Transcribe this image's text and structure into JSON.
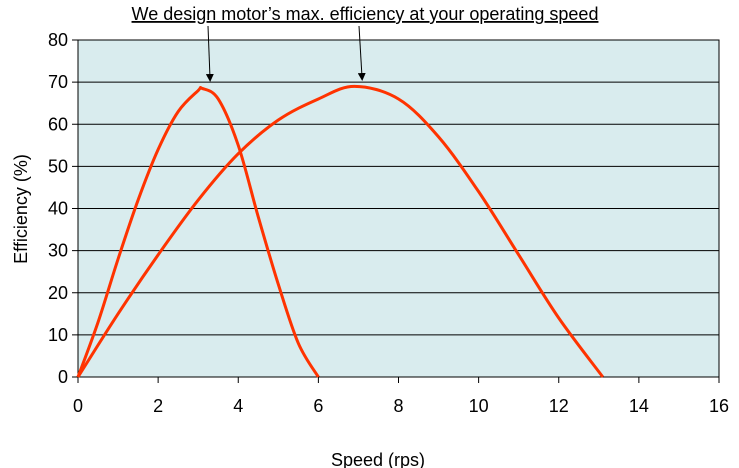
{
  "chart_data": {
    "type": "line",
    "title": "",
    "xlabel": "Speed (rps)",
    "ylabel": "Efficiency (%)",
    "xlim": [
      0,
      16
    ],
    "ylim": [
      0,
      80
    ],
    "xticks": [
      "0",
      "2",
      "4",
      "6",
      "8",
      "10",
      "12",
      "14",
      "16"
    ],
    "yticks": [
      "0",
      "10",
      "20",
      "30",
      "40",
      "50",
      "60",
      "70",
      "80"
    ],
    "grid": "horizontal",
    "plot_background": "#d9ecee",
    "line_color": "#ff3300",
    "annotation": {
      "text": "We design motor’s max. efficiency at your operating speed",
      "targets": [
        {
          "x": 3.1,
          "y": 68.5
        },
        {
          "x": 6.9,
          "y": 69
        }
      ]
    },
    "series": [
      {
        "x": [
          0,
          0.5,
          1,
          1.5,
          2,
          2.5,
          3,
          3.1,
          3.5,
          4,
          4.5,
          5,
          5.5,
          6
        ],
        "values": [
          0,
          13,
          28,
          42,
          54,
          63,
          68,
          68.5,
          66,
          55,
          38,
          22,
          8,
          0
        ]
      },
      {
        "x": [
          0,
          1,
          2,
          3,
          4,
          5,
          6,
          6.9,
          8,
          9,
          10,
          11,
          12,
          13.1
        ],
        "values": [
          0,
          15,
          29,
          42,
          53,
          61,
          66,
          69,
          66,
          57,
          44,
          29,
          14,
          0
        ]
      }
    ]
  }
}
